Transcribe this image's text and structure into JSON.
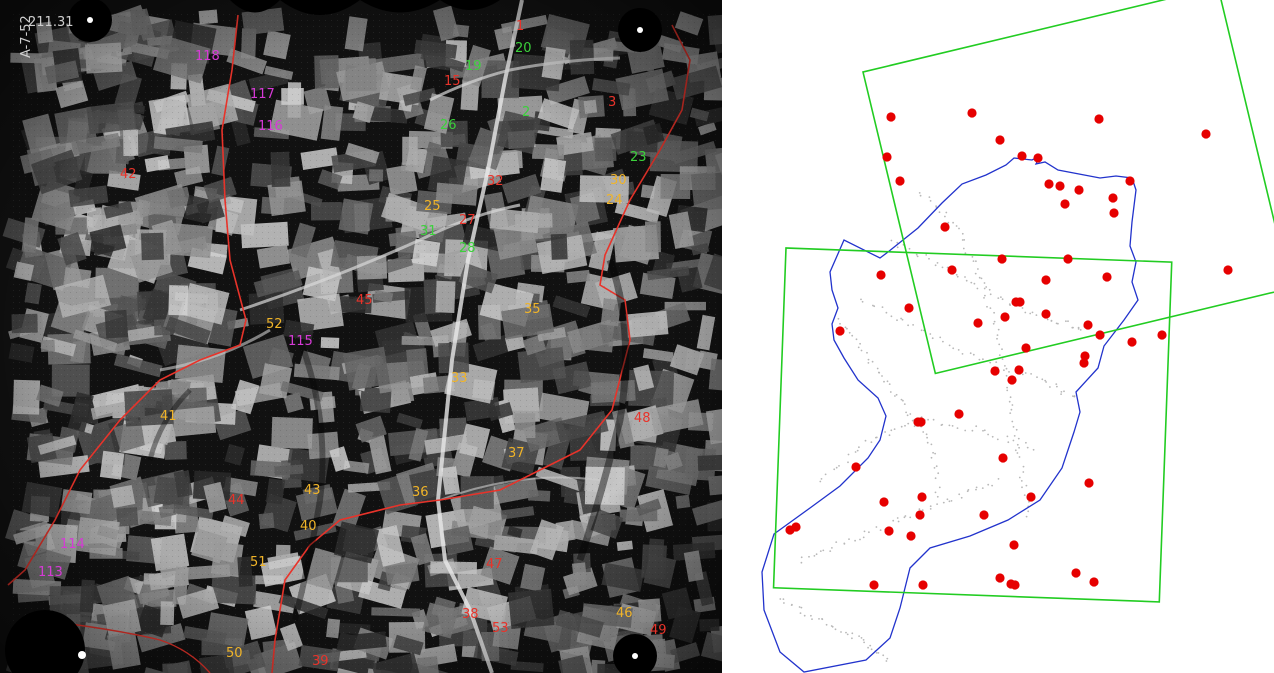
{
  "photo": {
    "corner_marks": [
      "211.31",
      "A-7-52"
    ],
    "point_colors": {
      "red": "#e8332a",
      "green": "#3bd13b",
      "yellow": "#f0b429",
      "magenta": "#d63ad6"
    },
    "points": [
      {
        "label": "1",
        "color": "red"
      },
      {
        "label": "20",
        "color": "green"
      },
      {
        "label": "19",
        "color": "green"
      },
      {
        "label": "15",
        "color": "red"
      },
      {
        "label": "3",
        "color": "red"
      },
      {
        "label": "2",
        "color": "green"
      },
      {
        "label": "26",
        "color": "green"
      },
      {
        "label": "23",
        "color": "green"
      },
      {
        "label": "30",
        "color": "yellow"
      },
      {
        "label": "24",
        "color": "yellow"
      },
      {
        "label": "32",
        "color": "red"
      },
      {
        "label": "25",
        "color": "yellow"
      },
      {
        "label": "27",
        "color": "red"
      },
      {
        "label": "31",
        "color": "green"
      },
      {
        "label": "28",
        "color": "green"
      },
      {
        "label": "118",
        "color": "magenta"
      },
      {
        "label": "117",
        "color": "magenta"
      },
      {
        "label": "116",
        "color": "magenta"
      },
      {
        "label": "42",
        "color": "red"
      },
      {
        "label": "45",
        "color": "red"
      },
      {
        "label": "52",
        "color": "yellow"
      },
      {
        "label": "115",
        "color": "magenta"
      },
      {
        "label": "35",
        "color": "yellow"
      },
      {
        "label": "33",
        "color": "yellow"
      },
      {
        "label": "41",
        "color": "yellow"
      },
      {
        "label": "48",
        "color": "red"
      },
      {
        "label": "37",
        "color": "yellow"
      },
      {
        "label": "43",
        "color": "yellow"
      },
      {
        "label": "36",
        "color": "yellow"
      },
      {
        "label": "44",
        "color": "red"
      },
      {
        "label": "40",
        "color": "yellow"
      },
      {
        "label": "114",
        "color": "magenta"
      },
      {
        "label": "113",
        "color": "magenta"
      },
      {
        "label": "51",
        "color": "yellow"
      },
      {
        "label": "47",
        "color": "red"
      },
      {
        "label": "46",
        "color": "yellow"
      },
      {
        "label": "49",
        "color": "red"
      },
      {
        "label": "38",
        "color": "red"
      },
      {
        "label": "53",
        "color": "red"
      },
      {
        "label": "50",
        "color": "yellow"
      },
      {
        "label": "39",
        "color": "red"
      }
    ]
  },
  "map": {
    "frame_color": "#22cc22",
    "boundary_color": "#2233cc",
    "marker_color": "#e60000",
    "trail_color": "#b8b8b8",
    "marker_count": 64
  }
}
